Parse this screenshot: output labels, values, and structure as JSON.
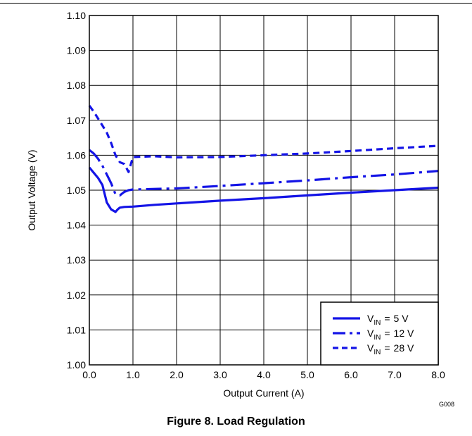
{
  "figure": {
    "caption": "Figure 8.  Load Regulation",
    "id": "G008"
  },
  "chart_data": {
    "type": "line",
    "title": "",
    "xlabel": "Output Current (A)",
    "ylabel": "Output Voltage (V)",
    "xlim": [
      0,
      8
    ],
    "ylim": [
      1.0,
      1.1
    ],
    "grid": true,
    "legend_position": "bottom-right",
    "x_ticks": [
      "0.0",
      "1.0",
      "2.0",
      "3.0",
      "4.0",
      "5.0",
      "6.0",
      "7.0",
      "8.0"
    ],
    "y_ticks": [
      "1.00",
      "1.01",
      "1.02",
      "1.03",
      "1.04",
      "1.05",
      "1.06",
      "1.07",
      "1.08",
      "1.09",
      "1.10"
    ],
    "series": [
      {
        "name": "VIN = 5 V",
        "legend": {
          "sym": "V",
          "sub": "IN",
          "eq": "=",
          "val": "5 V"
        },
        "style": "solid",
        "color": "#1414e6",
        "x": [
          0.0,
          0.1,
          0.2,
          0.3,
          0.4,
          0.5,
          0.6,
          0.65,
          0.7,
          0.8,
          1.0,
          1.5,
          2.0,
          3.0,
          4.0,
          5.0,
          6.0,
          7.0,
          8.0
        ],
        "y": [
          1.0565,
          1.055,
          1.0535,
          1.0515,
          1.0465,
          1.0445,
          1.0438,
          1.0445,
          1.045,
          1.0452,
          1.0453,
          1.0458,
          1.0462,
          1.047,
          1.0477,
          1.0485,
          1.0493,
          1.05,
          1.0507
        ]
      },
      {
        "name": "VIN = 12 V",
        "legend": {
          "sym": "V",
          "sub": "IN",
          "eq": "=",
          "val": "12 V"
        },
        "style": "dashdot",
        "color": "#1414e6",
        "x": [
          0.0,
          0.1,
          0.2,
          0.3,
          0.4,
          0.5,
          0.6,
          0.7,
          0.8,
          0.9,
          1.0,
          2.0,
          3.0,
          4.0,
          5.0,
          6.0,
          7.0,
          8.0
        ],
        "y": [
          1.0615,
          1.0605,
          1.059,
          1.057,
          1.0545,
          1.052,
          1.0488,
          1.0485,
          1.0495,
          1.05,
          1.0502,
          1.0505,
          1.0512,
          1.052,
          1.0528,
          1.0537,
          1.0545,
          1.0555
        ]
      },
      {
        "name": "VIN = 28 V",
        "legend": {
          "sym": "V",
          "sub": "IN",
          "eq": "=",
          "val": "28 V"
        },
        "style": "dashed",
        "color": "#1414e6",
        "x": [
          0.0,
          0.1,
          0.2,
          0.3,
          0.4,
          0.5,
          0.6,
          0.7,
          0.8,
          0.9,
          1.0,
          1.5,
          2.0,
          3.0,
          4.0,
          5.0,
          6.0,
          7.0,
          8.0
        ],
        "y": [
          1.0742,
          1.0725,
          1.0705,
          1.0685,
          1.0665,
          1.0635,
          1.06,
          1.058,
          1.0575,
          1.0552,
          1.0595,
          1.0597,
          1.0594,
          1.0595,
          1.06,
          1.0605,
          1.0612,
          1.062,
          1.0627
        ]
      }
    ]
  }
}
